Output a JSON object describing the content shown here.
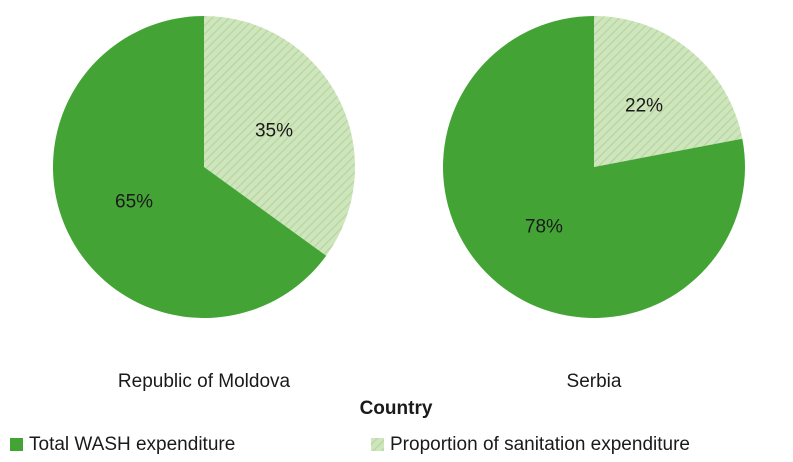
{
  "chart_data": {
    "type": "pie",
    "xlabel": "Country",
    "categories": [
      "Republic of Moldova",
      "Serbia"
    ],
    "series": [
      {
        "name": "Total WASH expenditure",
        "color": "#43a435",
        "values": [
          65,
          78
        ],
        "value_labels": [
          "65%",
          "78%"
        ]
      },
      {
        "name": "Proportion of sanitation expenditure",
        "color": "#cfe5bd",
        "pattern": "hatch",
        "values": [
          35,
          22
        ],
        "value_labels": [
          "35%",
          "22%"
        ]
      }
    ]
  }
}
